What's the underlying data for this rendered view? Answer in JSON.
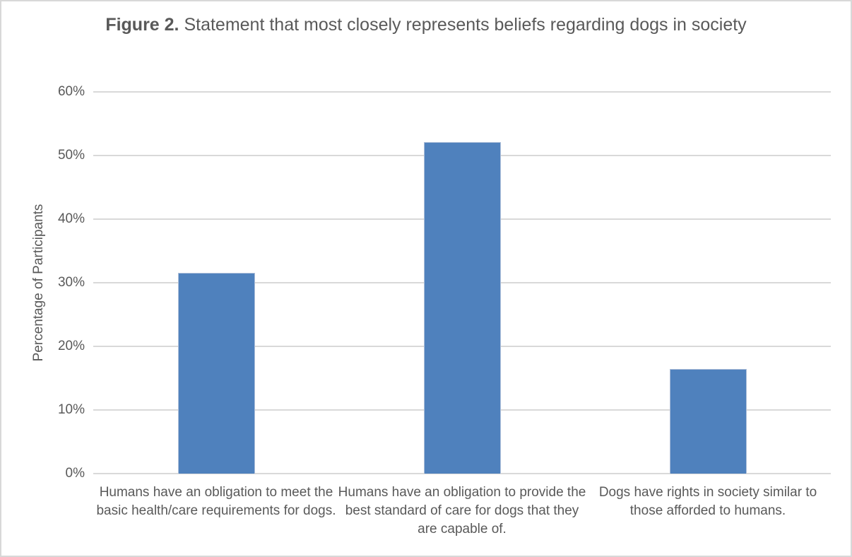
{
  "title": {
    "prefix": "Figure 2.",
    "rest": " Statement that most closely represents beliefs regarding dogs in society"
  },
  "chart_data": {
    "type": "bar",
    "title": "Figure 2. Statement that most closely represents beliefs regarding dogs in society",
    "categories": [
      "Humans have an obligation to meet the basic health/care requirements for dogs.",
      "Humans have an obligation to provide the best standard of care for dogs that they are capable of.",
      "Dogs have rights in society similar to those afforded to humans."
    ],
    "values": [
      31.5,
      52.1,
      16.4
    ],
    "xlabel": "",
    "ylabel": "Percentage of Participants",
    "ylim": [
      0,
      60
    ],
    "ytick_step": 10,
    "ytick_labels": [
      "0%",
      "10%",
      "20%",
      "30%",
      "40%",
      "50%",
      "60%"
    ],
    "grid": true,
    "legend": "none",
    "colors": {
      "bar_fill": "#4F81BD",
      "bar_edge": "#AEBFD9",
      "gridline": "#D9D9D9",
      "text": "#595959",
      "canvas_border": "#D8D8D8",
      "background": "#FFFFFF"
    }
  }
}
